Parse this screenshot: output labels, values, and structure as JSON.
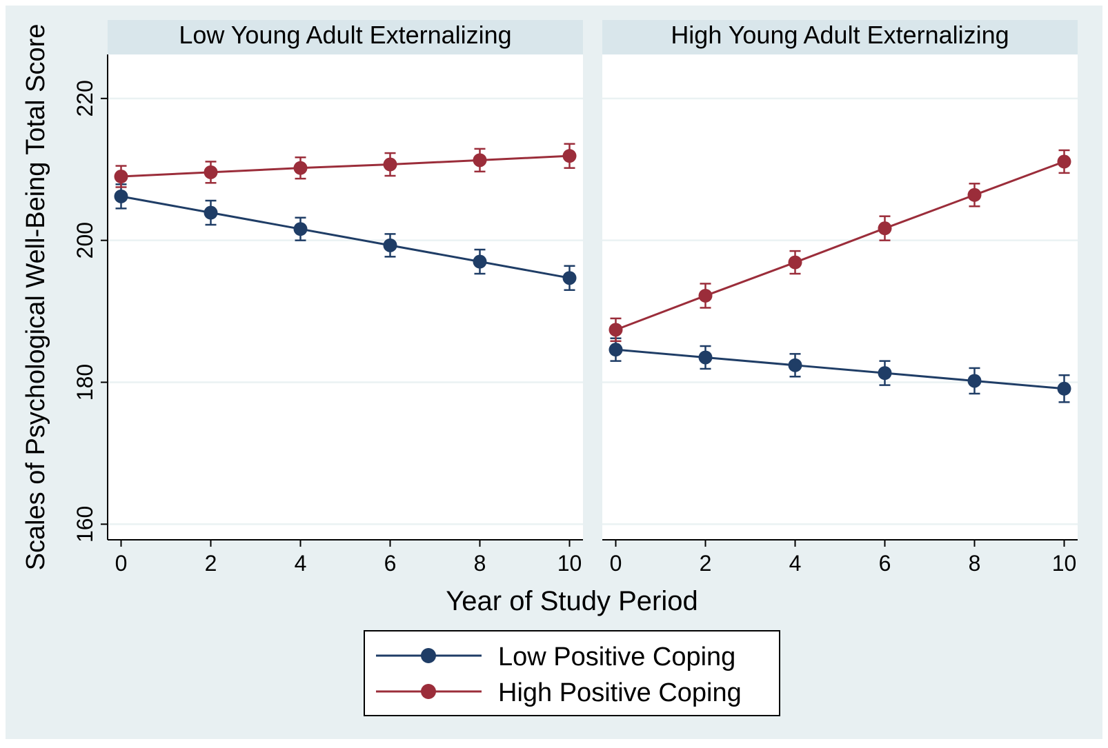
{
  "chart_data": {
    "type": "line",
    "ylabel": "Scales of Psychological Well-Being Total Score",
    "xlabel": "Year of Study Period",
    "x": [
      0,
      2,
      4,
      6,
      8,
      10
    ],
    "x_ticks": [
      0,
      2,
      4,
      6,
      8,
      10
    ],
    "y_ticks": [
      160,
      180,
      200,
      220
    ],
    "xlim": [
      -0.3,
      10.3
    ],
    "ylim": [
      157.8,
      226.2
    ],
    "grid": true,
    "legend_position": "bottom",
    "panels": [
      {
        "title": "Low Young Adult Externalizing",
        "series": [
          {
            "name": "Low Positive Coping",
            "color": "#1f3d66",
            "values": [
              206.2,
              203.9,
              201.6,
              199.3,
              197.0,
              194.7
            ],
            "error": [
              1.7,
              1.7,
              1.6,
              1.6,
              1.7,
              1.7
            ]
          },
          {
            "name": "High Positive Coping",
            "color": "#9b2d3a",
            "values": [
              209.0,
              209.6,
              210.2,
              210.7,
              211.3,
              211.9
            ],
            "error": [
              1.5,
              1.5,
              1.5,
              1.6,
              1.6,
              1.7
            ]
          }
        ]
      },
      {
        "title": "High Young Adult Externalizing",
        "series": [
          {
            "name": "Low Positive Coping",
            "color": "#1f3d66",
            "values": [
              184.6,
              183.5,
              182.4,
              181.3,
              180.2,
              179.1
            ],
            "error": [
              1.6,
              1.6,
              1.6,
              1.7,
              1.8,
              1.9
            ]
          },
          {
            "name": "High Positive Coping",
            "color": "#9b2d3a",
            "values": [
              187.4,
              192.2,
              196.9,
              201.7,
              206.4,
              211.1
            ],
            "error": [
              1.6,
              1.7,
              1.6,
              1.7,
              1.6,
              1.6
            ]
          }
        ]
      }
    ],
    "legend": [
      "Low Positive Coping",
      "High Positive Coping"
    ],
    "colors": {
      "background": "#e8f0f2",
      "panel_bg": "#ffffff",
      "strip": "#d9e6eb",
      "grid": "#eaf2f3",
      "axis": "#000000"
    }
  }
}
